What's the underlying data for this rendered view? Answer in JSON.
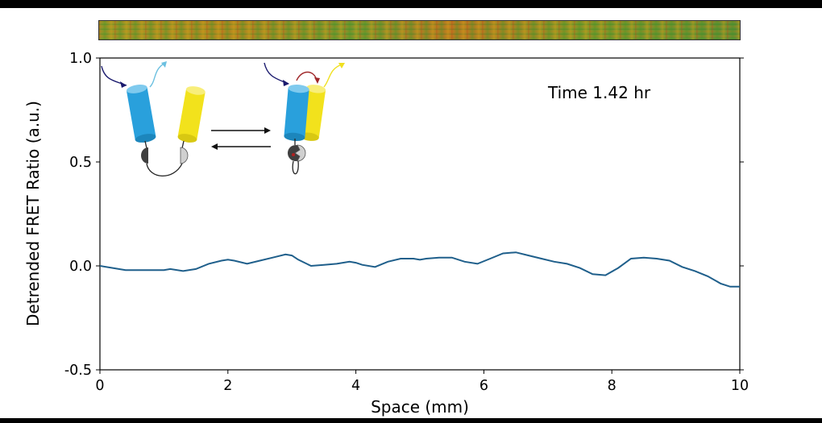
{
  "chart_data": {
    "type": "line",
    "title": "",
    "xlabel": "Space (mm)",
    "ylabel": "Detrended FRET Ratio (a.u.)",
    "xlim": [
      0,
      10
    ],
    "ylim": [
      -0.5,
      1.0
    ],
    "xticks": [
      "0",
      "2",
      "4",
      "6",
      "8",
      "10"
    ],
    "yticks": [
      "1.0",
      "0.5",
      "0.0",
      "-0.5"
    ],
    "annotation": "Time 1.42 hr",
    "grid": false,
    "series": [
      {
        "color": "#1f5f8b",
        "x": [
          0.0,
          0.2,
          0.4,
          0.6,
          0.8,
          1.0,
          1.1,
          1.3,
          1.5,
          1.7,
          1.9,
          2.0,
          2.1,
          2.3,
          2.5,
          2.7,
          2.9,
          3.0,
          3.1,
          3.3,
          3.5,
          3.7,
          3.9,
          4.0,
          4.1,
          4.3,
          4.5,
          4.7,
          4.9,
          5.0,
          5.1,
          5.3,
          5.5,
          5.7,
          5.9,
          6.1,
          6.3,
          6.5,
          6.7,
          6.9,
          7.1,
          7.3,
          7.5,
          7.7,
          7.9,
          8.1,
          8.3,
          8.5,
          8.7,
          8.9,
          9.1,
          9.3,
          9.5,
          9.7,
          9.85,
          10.0
        ],
        "y": [
          0.0,
          -0.01,
          -0.02,
          -0.02,
          -0.02,
          -0.02,
          -0.015,
          -0.025,
          -0.015,
          0.01,
          0.025,
          0.03,
          0.025,
          0.01,
          0.025,
          0.04,
          0.055,
          0.05,
          0.03,
          0.0,
          0.005,
          0.01,
          0.02,
          0.015,
          0.005,
          -0.005,
          0.02,
          0.035,
          0.035,
          0.03,
          0.035,
          0.04,
          0.04,
          0.02,
          0.01,
          0.035,
          0.06,
          0.065,
          0.05,
          0.035,
          0.02,
          0.01,
          -0.01,
          -0.04,
          -0.045,
          -0.01,
          0.035,
          0.04,
          0.035,
          0.025,
          -0.005,
          -0.025,
          -0.05,
          -0.085,
          -0.1,
          -0.1
        ]
      }
    ]
  }
}
